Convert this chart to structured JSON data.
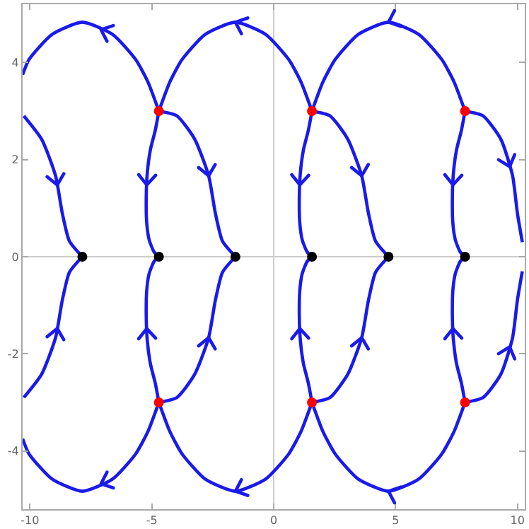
{
  "chart_data": {
    "type": "line",
    "xlim": [
      -10.3,
      10.3
    ],
    "ylim": [
      -5.2,
      5.2
    ],
    "xticks": [
      -10,
      -5,
      0,
      5,
      10
    ],
    "yticks": [
      -4,
      -2,
      0,
      2,
      4
    ],
    "line_style": "solid",
    "series": [
      {
        "color": "#1a1aeb",
        "x": [
          1.57,
          1.12,
          0.62,
          -0.33,
          -1.57,
          -2.81,
          -3.76,
          -4.26,
          -4.71
        ],
        "values": [
          3,
          3.6,
          4.06,
          4.58,
          4.83,
          4.58,
          4.06,
          3.6,
          3
        ]
      },
      {
        "color": "#1a1aeb",
        "x": [
          7.85,
          7.4,
          6.9,
          5.95,
          4.71,
          3.47,
          2.52,
          2.02,
          1.57
        ],
        "values": [
          3,
          3.6,
          4.06,
          4.58,
          4.83,
          4.58,
          4.06,
          3.6,
          3
        ]
      },
      {
        "color": "#1a1aeb",
        "x": [
          -4.71,
          -5.16,
          -5.66,
          -6.61,
          -7.85,
          -9.09,
          -10.04,
          -10.3
        ],
        "values": [
          3,
          3.6,
          4.06,
          4.58,
          4.83,
          4.58,
          4.06,
          3.75
        ]
      },
      {
        "color": "#1a1aeb",
        "x": [
          -4.71,
          -4.86,
          -5.06,
          -5.19,
          -5.23,
          -5.21,
          -5.11,
          -4.91,
          -4.71
        ],
        "values": [
          3,
          2.6,
          2.2,
          1.7,
          1.2,
          0.7,
          0.35,
          0.1,
          0
        ]
      },
      {
        "color": "#1a1aeb",
        "x": [
          1.57,
          1.42,
          1.22,
          1.09,
          1.05,
          1.07,
          1.17,
          1.37,
          1.57
        ],
        "values": [
          3,
          2.6,
          2.2,
          1.7,
          1.2,
          0.7,
          0.35,
          0.1,
          0
        ]
      },
      {
        "color": "#1a1aeb",
        "x": [
          7.85,
          7.7,
          7.5,
          7.37,
          7.33,
          7.35,
          7.45,
          7.65,
          7.85
        ],
        "values": [
          3,
          2.6,
          2.2,
          1.7,
          1.2,
          0.7,
          0.35,
          0.1,
          0
        ]
      },
      {
        "color": "#1a1aeb",
        "x": [
          -4.71,
          -3.97,
          -3.24,
          -2.67,
          -2.39,
          -2.1,
          -1.57
        ],
        "values": [
          3,
          2.9,
          2.42,
          1.67,
          0.89,
          0.32,
          0
        ]
      },
      {
        "color": "#1a1aeb",
        "x": [
          1.57,
          2.31,
          3.04,
          3.61,
          3.89,
          4.18,
          4.71
        ],
        "values": [
          3,
          2.9,
          2.42,
          1.67,
          0.89,
          0.32,
          0
        ]
      },
      {
        "color": "#1a1aeb",
        "x": [
          7.85,
          8.59,
          9.32,
          9.8,
          10.0,
          10.2
        ],
        "values": [
          3,
          2.9,
          2.42,
          1.67,
          0.89,
          0.3
        ]
      },
      {
        "color": "#1a1aeb",
        "x": [
          -10.25,
          -9.52,
          -8.95,
          -8.67,
          -8.38,
          -7.85
        ],
        "values": [
          2.9,
          2.42,
          1.67,
          0.89,
          0.32,
          0
        ]
      },
      {
        "color": "#1a1aeb",
        "x": [
          1.57,
          1.12,
          0.62,
          -0.33,
          -1.57,
          -2.81,
          -3.76,
          -4.26,
          -4.71
        ],
        "values": [
          -3,
          -3.6,
          -4.06,
          -4.58,
          -4.83,
          -4.58,
          -4.06,
          -3.6,
          -3
        ]
      },
      {
        "color": "#1a1aeb",
        "x": [
          7.85,
          7.4,
          6.9,
          5.95,
          4.71,
          3.47,
          2.52,
          2.02,
          1.57
        ],
        "values": [
          -3,
          -3.6,
          -4.06,
          -4.58,
          -4.83,
          -4.58,
          -4.06,
          -3.6,
          -3
        ]
      },
      {
        "color": "#1a1aeb",
        "x": [
          -4.71,
          -5.16,
          -5.66,
          -6.61,
          -7.85,
          -9.09,
          -10.04,
          -10.3
        ],
        "values": [
          -3,
          -3.6,
          -4.06,
          -4.58,
          -4.83,
          -4.58,
          -4.06,
          -3.75
        ]
      },
      {
        "color": "#1a1aeb",
        "x": [
          -4.71,
          -4.86,
          -5.06,
          -5.19,
          -5.23,
          -5.21,
          -5.11,
          -4.91,
          -4.71
        ],
        "values": [
          -3,
          -2.6,
          -2.2,
          -1.7,
          -1.2,
          -0.7,
          -0.35,
          -0.1,
          0
        ]
      },
      {
        "color": "#1a1aeb",
        "x": [
          1.57,
          1.42,
          1.22,
          1.09,
          1.05,
          1.07,
          1.17,
          1.37,
          1.57
        ],
        "values": [
          -3,
          -2.6,
          -2.2,
          -1.7,
          -1.2,
          -0.7,
          -0.35,
          -0.1,
          0
        ]
      },
      {
        "color": "#1a1aeb",
        "x": [
          7.85,
          7.7,
          7.5,
          7.37,
          7.33,
          7.35,
          7.45,
          7.65,
          7.85
        ],
        "values": [
          -3,
          -2.6,
          -2.2,
          -1.7,
          -1.2,
          -0.7,
          -0.35,
          -0.1,
          0
        ]
      },
      {
        "color": "#1a1aeb",
        "x": [
          -4.71,
          -3.97,
          -3.24,
          -2.67,
          -2.39,
          -2.1,
          -1.57
        ],
        "values": [
          -3,
          -2.9,
          -2.42,
          -1.67,
          -0.89,
          -0.32,
          0
        ]
      },
      {
        "color": "#1a1aeb",
        "x": [
          1.57,
          2.31,
          3.04,
          3.61,
          3.89,
          4.18,
          4.71
        ],
        "values": [
          -3,
          -2.9,
          -2.42,
          -1.67,
          -0.89,
          -0.32,
          0
        ]
      },
      {
        "color": "#1a1aeb",
        "x": [
          7.85,
          8.59,
          9.32,
          9.8,
          10.0,
          10.2
        ],
        "values": [
          -3,
          -2.9,
          -2.42,
          -1.67,
          -0.89,
          -0.3
        ]
      },
      {
        "color": "#1a1aeb",
        "x": [
          -10.25,
          -9.52,
          -8.95,
          -8.67,
          -8.38,
          -7.85
        ],
        "values": [
          -2.9,
          -2.42,
          -1.67,
          -0.89,
          -0.32,
          0
        ]
      },
      {
        "type": "scatter",
        "marker": "circle",
        "color": "#000000",
        "x": [
          -7.85,
          -4.71,
          -1.57,
          1.57,
          4.71,
          7.85
        ],
        "values": [
          0,
          0,
          0,
          0,
          0,
          0
        ]
      },
      {
        "type": "scatter",
        "marker": "circle",
        "color": "#ff0000",
        "x": [
          -4.71,
          1.57,
          7.85,
          -4.71,
          1.57,
          7.85
        ],
        "values": [
          3,
          3,
          3,
          -3,
          -3,
          -3
        ]
      }
    ]
  }
}
